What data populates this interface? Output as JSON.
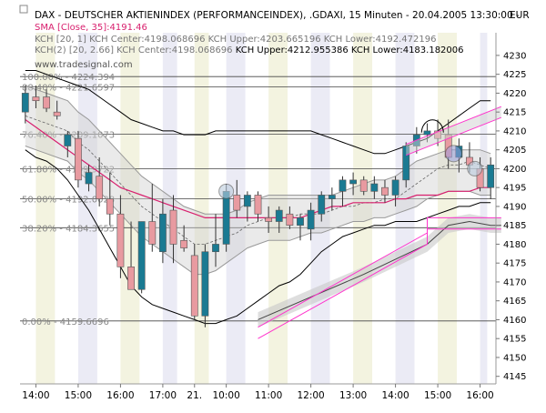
{
  "header": {
    "line1": "DAX - DEUTSCHER AKTIENINDEX (PERFORMANCEINDEX), .GDAXI, 15 Minuten - 20.04.2005 13:30:00 -",
    "currency": "EUR",
    "line2": "SMA [Close, 35]:4191.46",
    "line3": "KCH [20, 1] KCH Center:4198.068696 KCH Upper:4203.665196 KCH Lower:4192.472196",
    "line4_a": "KCH(2) [20, 2.66] KCH Center:4198.068696 ",
    "line4_b": "KCH Upper:4212.955386 KCH Lower:4183.182006",
    "watermark": "www.tradesignal.com"
  },
  "colors": {
    "up": "#1a7a92",
    "down": "#e89aa0",
    "sma": "#d8206e",
    "channel_fill": "#d0d0d0",
    "band_outer": "#000000",
    "trend": "#ff33cc",
    "band_alt": "#f0f0d8",
    "band_alt2": "#e6e6f2"
  },
  "chart_data": {
    "type": "candlestick",
    "ylim": [
      4143,
      4236
    ],
    "y_ticks": [
      4145,
      4150,
      4155,
      4160,
      4165,
      4170,
      4175,
      4180,
      4185,
      4190,
      4195,
      4200,
      4205,
      4210,
      4215,
      4220,
      4225,
      4230
    ],
    "x_tick_labels": [
      {
        "label": "14:00",
        "i": 1.5
      },
      {
        "label": "15:00",
        "i": 5.5
      },
      {
        "label": "16:00",
        "i": 9.5
      },
      {
        "label": "17:00",
        "i": 13.5
      },
      {
        "label": "21.",
        "i": 16.5
      },
      {
        "label": "10:00",
        "i": 19.5
      },
      {
        "label": "11:00",
        "i": 23.5
      },
      {
        "label": "12:00",
        "i": 27.5
      },
      {
        "label": "13:00",
        "i": 31.5
      },
      {
        "label": "14:00",
        "i": 35.5
      },
      {
        "label": "15:00",
        "i": 39.5
      },
      {
        "label": "16:00",
        "i": 43.5
      }
    ],
    "fibonacci": [
      {
        "label": "100.00% - 4224.394",
        "value": 4224.394
      },
      {
        "label": "88.40% - 4221.6597",
        "value": 4221.6597
      },
      {
        "label": "76.40% - 4209.1073",
        "value": 4209.1073
      },
      {
        "label": "61.80% - 4199.9722",
        "value": 4199.9722
      },
      {
        "label": "50.00% - 4192.0028",
        "value": 4192.0028
      },
      {
        "label": "38.20% - 4184.3655",
        "value": 4184.3655
      },
      {
        "label": "0.00% - 4159.6696",
        "value": 4159.6696
      }
    ],
    "candles": [
      {
        "o": 4215,
        "h": 4222,
        "l": 4212,
        "c": 4220
      },
      {
        "o": 4219,
        "h": 4222,
        "l": 4216,
        "c": 4218
      },
      {
        "o": 4219,
        "h": 4221,
        "l": 4215,
        "c": 4216
      },
      {
        "o": 4215,
        "h": 4218,
        "l": 4213,
        "c": 4214
      },
      {
        "o": 4206,
        "h": 4210,
        "l": 4203,
        "c": 4209
      },
      {
        "o": 4208,
        "h": 4210,
        "l": 4195,
        "c": 4197
      },
      {
        "o": 4196,
        "h": 4201,
        "l": 4194,
        "c": 4199
      },
      {
        "o": 4198,
        "h": 4203,
        "l": 4190,
        "c": 4192
      },
      {
        "o": 4192,
        "h": 4199,
        "l": 4185,
        "c": 4188
      },
      {
        "o": 4188,
        "h": 4193,
        "l": 4171,
        "c": 4174
      },
      {
        "o": 4174,
        "h": 4186,
        "l": 4168,
        "c": 4168
      },
      {
        "o": 4168,
        "h": 4186,
        "l": 4167,
        "c": 4186
      },
      {
        "o": 4186,
        "h": 4196,
        "l": 4178,
        "c": 4180
      },
      {
        "o": 4178,
        "h": 4192,
        "l": 4175,
        "c": 4188
      },
      {
        "o": 4189,
        "h": 4193,
        "l": 4175,
        "c": 4180
      },
      {
        "o": 4181,
        "h": 4185,
        "l": 4178,
        "c": 4179
      },
      {
        "o": 4177,
        "h": 4180,
        "l": 4160,
        "c": 4161
      },
      {
        "o": 4161,
        "h": 4180,
        "l": 4158,
        "c": 4178
      },
      {
        "o": 4178,
        "h": 4188,
        "l": 4174,
        "c": 4180
      },
      {
        "o": 4180,
        "h": 4196,
        "l": 4178,
        "c": 4194
      },
      {
        "o": 4193,
        "h": 4197,
        "l": 4187,
        "c": 4189
      },
      {
        "o": 4190,
        "h": 4194,
        "l": 4186,
        "c": 4193
      },
      {
        "o": 4193,
        "h": 4194,
        "l": 4186,
        "c": 4188
      },
      {
        "o": 4187,
        "h": 4190,
        "l": 4183,
        "c": 4186
      },
      {
        "o": 4186,
        "h": 4190,
        "l": 4183,
        "c": 4189
      },
      {
        "o": 4188,
        "h": 4190,
        "l": 4184,
        "c": 4185
      },
      {
        "o": 4185,
        "h": 4188,
        "l": 4181,
        "c": 4187
      },
      {
        "o": 4184,
        "h": 4191,
        "l": 4181,
        "c": 4189
      },
      {
        "o": 4188,
        "h": 4194,
        "l": 4186,
        "c": 4193
      },
      {
        "o": 4192,
        "h": 4195,
        "l": 4189,
        "c": 4193
      },
      {
        "o": 4194,
        "h": 4198,
        "l": 4190,
        "c": 4197
      },
      {
        "o": 4196,
        "h": 4199,
        "l": 4193,
        "c": 4197
      },
      {
        "o": 4197,
        "h": 4198,
        "l": 4193,
        "c": 4194
      },
      {
        "o": 4194,
        "h": 4198,
        "l": 4192,
        "c": 4196
      },
      {
        "o": 4195,
        "h": 4197,
        "l": 4191,
        "c": 4193
      },
      {
        "o": 4193,
        "h": 4198,
        "l": 4190,
        "c": 4197
      },
      {
        "o": 4197,
        "h": 4207,
        "l": 4195,
        "c": 4206
      },
      {
        "o": 4206,
        "h": 4211,
        "l": 4204,
        "c": 4209
      },
      {
        "o": 4209,
        "h": 4212,
        "l": 4207,
        "c": 4210
      },
      {
        "o": 4210,
        "h": 4213,
        "l": 4206,
        "c": 4208
      },
      {
        "o": 4209,
        "h": 4213,
        "l": 4200,
        "c": 4203
      },
      {
        "o": 4203,
        "h": 4208,
        "l": 4199,
        "c": 4206
      },
      {
        "o": 4203,
        "h": 4207,
        "l": 4199,
        "c": 4201
      },
      {
        "o": 4200,
        "h": 4203,
        "l": 4194,
        "c": 4195
      },
      {
        "o": 4195,
        "h": 4203,
        "l": 4192,
        "c": 4201
      }
    ],
    "sma": [
      4213,
      4211,
      4209,
      4207,
      4205,
      4203,
      4201,
      4199,
      4197,
      4195,
      4194,
      4193,
      4192,
      4191,
      4190,
      4189,
      4188,
      4187,
      4187,
      4187,
      4187,
      4187,
      4187,
      4187,
      4187,
      4187,
      4187,
      4188,
      4189,
      4190,
      4190,
      4191,
      4191,
      4191,
      4191,
      4192,
      4192,
      4193,
      4193,
      4193,
      4194,
      4194,
      4194,
      4195,
      4195
    ],
    "channel_center": [
      4214,
      4213,
      4212,
      4211,
      4210,
      4207,
      4205,
      4202,
      4199,
      4196,
      4193,
      4190,
      4188,
      4186,
      4184,
      4182,
      4180,
      4180,
      4181,
      4182,
      4183,
      4185,
      4186,
      4187,
      4187,
      4187,
      4188,
      4188,
      4188,
      4189,
      4190,
      4190,
      4191,
      4191,
      4192,
      4192,
      4194,
      4196,
      4198,
      4200,
      4201,
      4201,
      4202,
      4201,
      4200
    ],
    "channel_upper": [
      4222,
      4221,
      4220,
      4219,
      4218,
      4215,
      4213,
      4210,
      4207,
      4204,
      4201,
      4198,
      4196,
      4194,
      4192,
      4190,
      4189,
      4188,
      4188,
      4188,
      4189,
      4191,
      4192,
      4193,
      4193,
      4193,
      4193,
      4193,
      4193,
      4193,
      4194,
      4195,
      4196,
      4197,
      4197,
      4198,
      4200,
      4202,
      4203,
      4204,
      4205,
      4205,
      4205,
      4205,
      4204
    ],
    "channel_lower": [
      4206,
      4205,
      4204,
      4203,
      4202,
      4199,
      4197,
      4194,
      4191,
      4188,
      4185,
      4182,
      4180,
      4178,
      4176,
      4174,
      4172,
      4172,
      4173,
      4175,
      4177,
      4179,
      4180,
      4181,
      4181,
      4181,
      4182,
      4183,
      4183,
      4184,
      4185,
      4186,
      4186,
      4187,
      4187,
      4188,
      4189,
      4190,
      4192,
      4193,
      4194,
      4194,
      4194,
      4193,
      4193
    ],
    "band_upper": [
      4226,
      4226,
      4225,
      4224,
      4223,
      4222,
      4221,
      4219,
      4217,
      4215,
      4213,
      4212,
      4211,
      4210,
      4210,
      4209,
      4209,
      4209,
      4210,
      4210,
      4210,
      4210,
      4210,
      4210,
      4210,
      4210,
      4210,
      4210,
      4209,
      4208,
      4207,
      4206,
      4205,
      4204,
      4204,
      4205,
      4206,
      4207,
      4208,
      4210,
      4212,
      4214,
      4216,
      4218,
      4218
    ],
    "band_lower": [
      4205,
      4203,
      4202,
      4200,
      4197,
      4193,
      4189,
      4184,
      4179,
      4174,
      4169,
      4166,
      4164,
      4163,
      4162,
      4161,
      4160,
      4159,
      4159,
      4160,
      4161,
      4163,
      4165,
      4167,
      4169,
      4170,
      4172,
      4175,
      4178,
      4180,
      4182,
      4183,
      4184,
      4185,
      4185,
      4186,
      4186,
      4186,
      4187,
      4188,
      4189,
      4190,
      4190,
      4191,
      4191
    ],
    "upper_trend": [
      {
        "i": 36,
        "v": 4205
      },
      {
        "i": 45,
        "v": 4215
      }
    ],
    "lower_trend": [
      {
        "i": 22,
        "v": 4158
      },
      {
        "i": 38,
        "v": 4183
      },
      {
        "i": 38,
        "v": 4187
      },
      {
        "i": 45,
        "v": 4187
      }
    ],
    "lower_trend_shaded": [
      {
        "i": 22,
        "v": 4160
      },
      {
        "i": 32,
        "v": 4172
      },
      {
        "i": 38,
        "v": 4180
      },
      {
        "i": 40,
        "v": 4185
      },
      {
        "i": 42,
        "v": 4186
      },
      {
        "i": 44,
        "v": 4185
      },
      {
        "i": 45,
        "v": 4185
      }
    ],
    "markers": [
      {
        "type": "circle",
        "i": 19,
        "v": 4194
      },
      {
        "type": "circle-blue",
        "i": 40.5,
        "v": 4204
      },
      {
        "type": "circle",
        "i": 42.5,
        "v": 4200
      },
      {
        "type": "arc",
        "i": 38.5,
        "v": 4211
      }
    ]
  }
}
